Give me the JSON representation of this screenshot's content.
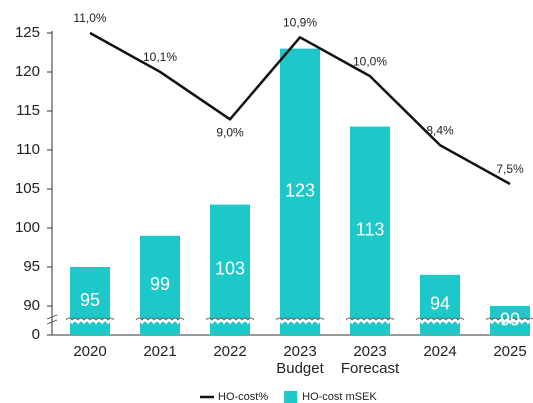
{
  "chart_data": {
    "type": "bar_line",
    "categories": [
      "2020",
      "2021",
      "2022",
      "2023\nBudget",
      "2023\nForecast",
      "2024",
      "2025"
    ],
    "series": [
      {
        "name": "HO-cost%",
        "type": "line",
        "axis": "y2",
        "color": "#111111",
        "values": [
          11.0,
          10.1,
          9.0,
          10.9,
          10.0,
          8.4,
          7.5
        ],
        "value_labels": [
          "11,0%",
          "10,1%",
          "9,0%",
          "10,9%",
          "10,0%",
          "8,4%",
          "7,5%"
        ]
      },
      {
        "name": "HO-cost mSEK",
        "type": "bar",
        "color": "#1ec8c9",
        "values": [
          95,
          99,
          103,
          123,
          113,
          94,
          90
        ]
      }
    ],
    "ylim": [
      0,
      125
    ],
    "axis_break": [
      0,
      90
    ],
    "yticks": [
      0,
      90,
      95,
      100,
      105,
      110,
      115,
      120,
      125
    ],
    "y2lim": [
      4,
      11
    ],
    "legend": "bottom"
  }
}
